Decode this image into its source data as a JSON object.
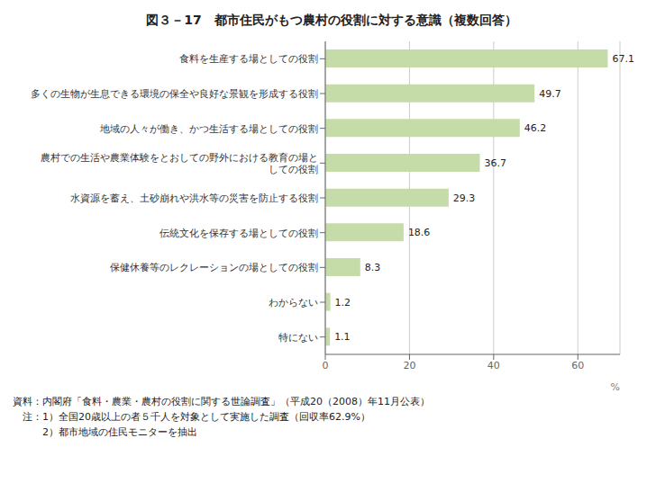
{
  "chart_data": {
    "type": "bar",
    "orientation": "horizontal",
    "title": "図３－17　都市住民がもつ農村の役割に対する意識（複数回答）",
    "categories": [
      "食料を生産する場としての役割",
      "多くの生物が生息できる環境の保全や良好な景観を形成する役割",
      "地域の人々が働き、かつ生活する場としての役割",
      "農村での生活や農業体験をとおしての野外における教育の場と\nしての役割",
      "水資源を蓄え、土砂崩れや洪水等の災害を防止する役割",
      "伝統文化を保存する場としての役割",
      "保健休養等のレクレーションの場としての役割",
      "わからない",
      "特にない"
    ],
    "values": [
      67.1,
      49.7,
      46.2,
      36.7,
      29.3,
      18.6,
      8.3,
      1.2,
      1.1
    ],
    "color": "#c5dba8",
    "xlim": [
      0,
      70
    ],
    "xticks": [
      0,
      20,
      40,
      60
    ],
    "xlabel": "%",
    "grid": true,
    "data_labels": true,
    "annotations": [
      "資料：内閣府「食料・農業・農村の役割に関する世論調査」（平成20（2008）年11月公表）",
      "　注：1）全国20歳以上の者５千人を対象として実施した調査（回収率62.9%）",
      "　　　2）都市地域の住民モニターを抽出"
    ]
  }
}
